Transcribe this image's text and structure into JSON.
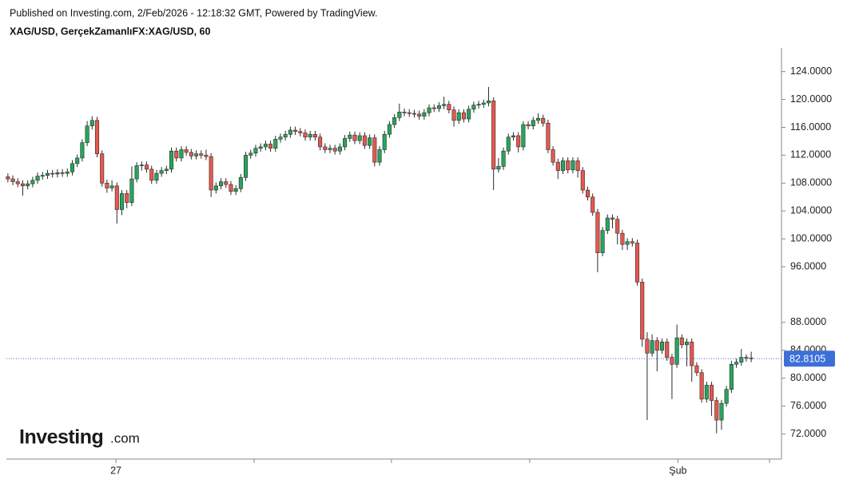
{
  "header": {
    "published": "Published on Investing.com, 2/Feb/2026 - 12:18:32 GMT, Powered by TradingView.",
    "symbol": "XAG/USD, GerçekZamanlıFX:XAG/USD, 60"
  },
  "logo": {
    "brand": "Investing",
    "suffix": ".com"
  },
  "chart_data": {
    "type": "candlestick",
    "up_color": "#26a65b",
    "down_color": "#e8574e",
    "last_price": 82.8105,
    "last_price_color": "#3d6fd9",
    "xlim": [
      -0.3,
      156.1
    ],
    "ylim": [
      68.4,
      127.4
    ],
    "xticks": [
      {
        "value": 21.8,
        "label": "27"
      },
      {
        "value": 49.7,
        "label": null
      },
      {
        "value": 77.4,
        "label": null
      },
      {
        "value": 105.3,
        "label": null
      },
      {
        "value": 135.2,
        "label": "Şub"
      },
      {
        "value": 153.7,
        "label": null
      }
    ],
    "yticks": [
      {
        "value": 72,
        "label": "72.0000"
      },
      {
        "value": 76,
        "label": "76.0000"
      },
      {
        "value": 80,
        "label": "80.0000"
      },
      {
        "value": 84,
        "label": "84.0000"
      },
      {
        "value": 88,
        "label": "88.0000"
      },
      {
        "value": 96,
        "label": "96.0000"
      },
      {
        "value": 100,
        "label": "100.0000"
      },
      {
        "value": 104,
        "label": "104.0000"
      },
      {
        "value": 108,
        "label": "108.0000"
      },
      {
        "value": 112,
        "label": "112.0000"
      },
      {
        "value": 116,
        "label": "116.0000"
      },
      {
        "value": 120,
        "label": "120.0000"
      },
      {
        "value": 124,
        "label": "124.0000"
      }
    ],
    "open": [
      108.9,
      108.6,
      108.2,
      107.9,
      107.6,
      107.9,
      108.4,
      109.0,
      109.1,
      109.4,
      109.3,
      109.5,
      109.4,
      109.6,
      110.8,
      111.6,
      113.8,
      116.2,
      117.0,
      112.2,
      108.0,
      107.3,
      107.6,
      104.2,
      106.5,
      105.2,
      108.6,
      110.5,
      110.6,
      110.0,
      108.4,
      109.4,
      109.8,
      110.0,
      112.6,
      111.6,
      112.8,
      112.4,
      111.9,
      112.2,
      112.0,
      111.8,
      107.0,
      107.6,
      108.2,
      107.8,
      106.8,
      107.2,
      108.8,
      112.0,
      112.3,
      113.0,
      113.2,
      113.6,
      113.0,
      114.3,
      114.6,
      115.0,
      115.6,
      115.4,
      115.2,
      114.6,
      115.0,
      114.6,
      113.2,
      112.8,
      113.0,
      112.6,
      113.2,
      114.4,
      114.9,
      114.1,
      114.8,
      113.4,
      114.5,
      111.0,
      112.8,
      115.0,
      116.4,
      117.4,
      118.2,
      118.1,
      118.0,
      117.9,
      117.6,
      118.1,
      118.8,
      118.7,
      119.1,
      119.3,
      118.5,
      117.0,
      118.1,
      117.2,
      118.6,
      119.2,
      119.3,
      119.5,
      119.8,
      110.0,
      110.4,
      112.6,
      114.6,
      114.8,
      113.2,
      116.4,
      116.2,
      117.0,
      117.3,
      116.6,
      112.8,
      111.0,
      109.8,
      111.2,
      109.9,
      111.2,
      109.8,
      107.0,
      106.0,
      103.8,
      98.0,
      101.2,
      103.0,
      102.8,
      100.8,
      99.2,
      99.6,
      99.4,
      93.8,
      85.6,
      83.6,
      85.4,
      84.0,
      85.2,
      83.0,
      82.0,
      85.8,
      84.8,
      85.2,
      81.8,
      80.8,
      77.0,
      79.0,
      76.8,
      74.0,
      76.4,
      78.4,
      82.0,
      82.3,
      83.0,
      82.9
    ],
    "high": [
      109.4,
      109.1,
      108.7,
      108.4,
      108.4,
      108.9,
      109.5,
      109.6,
      109.9,
      109.9,
      110.0,
      110.0,
      110.1,
      111.3,
      112.1,
      114.3,
      116.9,
      117.6,
      117.5,
      112.7,
      108.5,
      108.4,
      108.1,
      107.0,
      107.0,
      110.4,
      111.0,
      111.1,
      111.1,
      110.5,
      109.9,
      110.3,
      110.5,
      113.1,
      113.1,
      113.3,
      113.3,
      112.9,
      112.7,
      112.7,
      112.8,
      112.3,
      108.1,
      108.7,
      108.7,
      108.3,
      107.7,
      109.3,
      112.5,
      112.8,
      113.5,
      113.7,
      114.1,
      114.1,
      114.8,
      115.1,
      115.5,
      116.1,
      116.1,
      115.9,
      115.7,
      115.5,
      115.5,
      115.1,
      113.7,
      113.5,
      113.5,
      113.7,
      114.9,
      115.4,
      115.4,
      115.3,
      115.3,
      115.0,
      115.0,
      113.3,
      115.5,
      116.9,
      117.9,
      119.4,
      118.7,
      118.6,
      118.5,
      118.4,
      118.6,
      119.3,
      119.3,
      119.6,
      120.4,
      119.8,
      119.0,
      118.6,
      118.6,
      119.1,
      119.7,
      119.8,
      120.0,
      121.8,
      120.3,
      111.6,
      113.1,
      115.1,
      115.3,
      115.3,
      116.9,
      116.9,
      117.5,
      118.0,
      117.8,
      117.1,
      113.3,
      111.5,
      111.7,
      111.7,
      111.7,
      111.7,
      110.3,
      107.5,
      106.5,
      104.3,
      101.7,
      103.5,
      103.5,
      103.3,
      101.3,
      100.1,
      100.1,
      99.9,
      94.3,
      86.6,
      86.3,
      85.9,
      85.7,
      85.7,
      83.5,
      87.7,
      86.3,
      85.7,
      85.7,
      82.3,
      81.3,
      79.5,
      79.5,
      77.3,
      76.9,
      78.9,
      82.5,
      82.8,
      84.2,
      83.4,
      83.8
    ],
    "low": [
      108.1,
      107.7,
      107.4,
      106.2,
      107.1,
      107.4,
      107.9,
      108.5,
      108.6,
      108.8,
      108.8,
      108.9,
      108.9,
      109.1,
      110.3,
      111.1,
      113.3,
      115.7,
      111.7,
      107.5,
      106.6,
      106.8,
      102.2,
      103.4,
      104.4,
      104.7,
      108.1,
      109.8,
      109.5,
      107.9,
      107.9,
      108.9,
      109.3,
      109.5,
      111.1,
      111.1,
      111.9,
      111.4,
      111.4,
      111.5,
      111.3,
      106.0,
      106.5,
      107.1,
      107.3,
      106.3,
      106.3,
      106.7,
      108.3,
      111.5,
      111.8,
      112.5,
      112.7,
      112.5,
      112.5,
      113.8,
      114.1,
      114.5,
      114.9,
      114.7,
      114.1,
      114.1,
      114.1,
      112.7,
      112.3,
      112.3,
      112.1,
      112.1,
      112.7,
      113.9,
      113.6,
      113.6,
      112.9,
      112.9,
      110.4,
      110.5,
      112.3,
      114.5,
      115.9,
      116.9,
      117.6,
      117.5,
      117.4,
      117.1,
      117.1,
      117.6,
      118.2,
      118.2,
      118.6,
      118.0,
      116.1,
      116.5,
      116.7,
      116.7,
      118.1,
      118.7,
      118.8,
      119.0,
      107.0,
      109.5,
      109.9,
      112.1,
      114.1,
      112.4,
      112.7,
      115.7,
      115.7,
      116.5,
      116.1,
      112.3,
      110.5,
      108.6,
      109.3,
      109.4,
      109.4,
      108.8,
      106.5,
      105.5,
      103.3,
      95.2,
      97.5,
      100.7,
      101.5,
      99.2,
      98.4,
      98.4,
      98.9,
      93.3,
      84.5,
      74.0,
      83.1,
      81.0,
      83.5,
      82.5,
      77.0,
      81.5,
      84.3,
      81.7,
      79.5,
      80.3,
      76.5,
      76.5,
      74.6,
      72.1,
      72.6,
      75.9,
      77.9,
      81.5,
      81.8,
      82.4,
      82.3
    ],
    "close": [
      108.6,
      108.2,
      107.9,
      107.6,
      107.9,
      108.4,
      109.0,
      109.1,
      109.4,
      109.3,
      109.5,
      109.4,
      109.6,
      110.8,
      111.6,
      113.8,
      116.2,
      117.0,
      112.2,
      108.0,
      107.3,
      107.6,
      104.2,
      106.5,
      105.2,
      108.6,
      110.5,
      110.6,
      110.0,
      108.4,
      109.4,
      109.8,
      110.0,
      112.6,
      111.6,
      112.8,
      112.4,
      111.9,
      112.2,
      112.0,
      111.8,
      107.0,
      107.6,
      108.2,
      107.8,
      106.8,
      107.2,
      108.8,
      112.0,
      112.3,
      113.0,
      113.2,
      113.6,
      113.0,
      114.3,
      114.6,
      115.0,
      115.6,
      115.4,
      115.2,
      114.6,
      115.0,
      114.6,
      113.2,
      112.8,
      113.0,
      112.6,
      113.2,
      114.4,
      114.9,
      114.1,
      114.8,
      113.4,
      114.5,
      111.0,
      112.8,
      115.0,
      116.4,
      117.4,
      118.2,
      118.1,
      118.0,
      117.9,
      117.6,
      118.1,
      118.8,
      118.7,
      119.1,
      119.3,
      118.5,
      117.0,
      118.1,
      117.2,
      118.6,
      119.2,
      119.3,
      119.5,
      119.8,
      110.0,
      110.4,
      112.6,
      114.6,
      114.8,
      113.2,
      116.4,
      116.2,
      117.0,
      117.3,
      116.6,
      112.8,
      111.0,
      109.8,
      111.2,
      109.9,
      111.2,
      109.8,
      107.0,
      106.0,
      103.8,
      98.0,
      101.2,
      103.0,
      102.8,
      100.8,
      99.2,
      99.6,
      99.4,
      93.8,
      85.6,
      83.6,
      85.4,
      84.0,
      85.2,
      83.0,
      82.0,
      85.8,
      84.8,
      85.2,
      81.8,
      80.8,
      77.0,
      79.0,
      76.8,
      74.0,
      76.4,
      78.4,
      82.0,
      82.3,
      83.0,
      82.9,
      82.8105
    ]
  }
}
